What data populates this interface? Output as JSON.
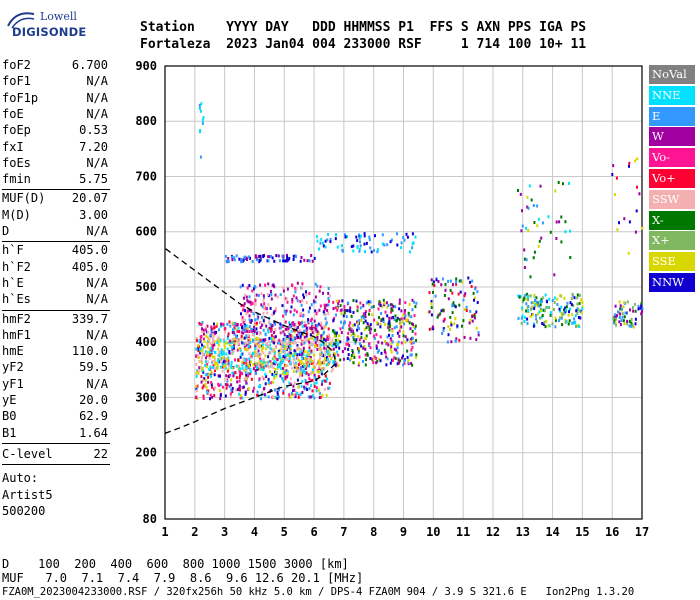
{
  "logo": {
    "line1": "Lowell",
    "line2": "DIGISONDE"
  },
  "header": {
    "line1": "Station    YYYY DAY   DDD HHMMSS P1  FFS S AXN PPS IGA PS",
    "line2": "Fortaleza  2023 Jan04 004 233000 RSF     1 714 100 10+ 11"
  },
  "params": {
    "group1": [
      {
        "label": "foF2",
        "value": "6.700"
      },
      {
        "label": "foF1",
        "value": "N/A"
      },
      {
        "label": "foF1p",
        "value": "N/A"
      },
      {
        "label": "foE",
        "value": "N/A"
      },
      {
        "label": "foEp",
        "value": "0.53"
      },
      {
        "label": "fxI",
        "value": "7.20"
      },
      {
        "label": "foEs",
        "value": "N/A"
      },
      {
        "label": "fmin",
        "value": "5.75"
      }
    ],
    "group2": [
      {
        "label": "MUF(D)",
        "value": "20.07"
      },
      {
        "label": "M(D)",
        "value": "3.00"
      },
      {
        "label": "D",
        "value": "N/A"
      }
    ],
    "group3": [
      {
        "label": "h`F",
        "value": "405.0"
      },
      {
        "label": "h`F2",
        "value": "405.0"
      },
      {
        "label": "h`E",
        "value": "N/A"
      },
      {
        "label": "h`Es",
        "value": "N/A"
      }
    ],
    "group4": [
      {
        "label": "hmF2",
        "value": "339.7"
      },
      {
        "label": "hmF1",
        "value": "N/A"
      },
      {
        "label": "hmE",
        "value": "110.0"
      },
      {
        "label": "yF2",
        "value": "59.5"
      },
      {
        "label": "yF1",
        "value": "N/A"
      },
      {
        "label": "yE",
        "value": "20.0"
      },
      {
        "label": "B0",
        "value": "62.9"
      },
      {
        "label": "B1",
        "value": "1.64"
      }
    ],
    "clevel": {
      "label": "C-level",
      "value": "22"
    },
    "auto": {
      "line1": "Auto:",
      "line2": "Artist5",
      "line3": "500200"
    }
  },
  "footer": {
    "line1": "D    100  200  400  600  800 1000 1500 3000 [km]",
    "line2": "MUF   7.0  7.1  7.4  7.9  8.6  9.6 12.6 20.1 [MHz]",
    "line3": "FZA0M_2023004233000.RSF / 320fx256h 50 kHz 5.0 km / DPS-4 FZA0M 904 / 3.9 S 321.6 E   Ion2Png 1.3.20"
  },
  "legend": [
    {
      "label": "NoVal",
      "color": "#808080"
    },
    {
      "label": "NNE",
      "color": "#00e0ff"
    },
    {
      "label": "E",
      "color": "#3399ff"
    },
    {
      "label": "W",
      "color": "#a000a0"
    },
    {
      "label": "Vo-",
      "color": "#ff1493"
    },
    {
      "label": "Vo+",
      "color": "#ff0033"
    },
    {
      "label": "SSW",
      "color": "#f4b0b0"
    },
    {
      "label": "X-",
      "color": "#007800"
    },
    {
      "label": "X+",
      "color": "#80b860"
    },
    {
      "label": "SSE",
      "color": "#d8d800"
    },
    {
      "label": "NNW",
      "color": "#1000d0"
    }
  ],
  "chart_data": {
    "type": "scatter",
    "xlim": [
      1,
      17
    ],
    "ylim": [
      80,
      900
    ],
    "xticks": [
      1,
      2,
      3,
      4,
      5,
      6,
      7,
      8,
      9,
      10,
      11,
      12,
      13,
      14,
      15,
      16,
      17
    ],
    "yticks": [
      80,
      200,
      300,
      400,
      500,
      600,
      700,
      800,
      900
    ],
    "grid": true,
    "legend_placement": "right",
    "profile_curve": {
      "x": [
        1.0,
        1.5,
        2.0,
        2.5,
        3.0,
        3.5,
        4.0,
        4.5,
        5.0,
        5.5,
        6.0,
        6.3,
        6.5,
        6.7,
        6.7,
        6.6,
        6.3,
        6.0,
        5.5,
        5.0,
        4.0,
        3.5,
        3.0,
        2.5,
        2.0,
        1.5,
        1.0
      ],
      "y": [
        235,
        245,
        256,
        268,
        280,
        290,
        300,
        310,
        320,
        325,
        330,
        340,
        350,
        360,
        372,
        385,
        400,
        410,
        420,
        430,
        455,
        470,
        490,
        510,
        530,
        550,
        570
      ]
    },
    "clusters": [
      {
        "x": [
          2.0,
          6.5
        ],
        "y": [
          300,
          440
        ],
        "colors": [
          "W",
          "Vo-",
          "SSW",
          "SSE",
          "NNE",
          "E",
          "Vo+",
          "NNW"
        ],
        "n": 900
      },
      {
        "x": [
          2.0,
          6.8
        ],
        "y": [
          345,
          410
        ],
        "colors": [
          "SSE",
          "SSW",
          "NNE"
        ],
        "n": 350
      },
      {
        "x": [
          6.6,
          9.4
        ],
        "y": [
          360,
          480
        ],
        "colors": [
          "SSE",
          "W",
          "NNW",
          "Vo-",
          "E",
          "X-"
        ],
        "n": 380
      },
      {
        "x": [
          3.5,
          6.5
        ],
        "y": [
          400,
          510
        ],
        "colors": [
          "W",
          "Vo-",
          "NNW",
          "E",
          "SSW"
        ],
        "n": 250
      },
      {
        "x": [
          9.8,
          11.5
        ],
        "y": [
          400,
          520
        ],
        "colors": [
          "NNW",
          "W",
          "SSE",
          "Vo+",
          "X-",
          "E"
        ],
        "n": 110
      },
      {
        "x": [
          12.8,
          15.0
        ],
        "y": [
          430,
          490
        ],
        "colors": [
          "E",
          "NNE",
          "NNW",
          "X-",
          "X+",
          "SSE"
        ],
        "n": 170
      },
      {
        "x": [
          16.0,
          17.0
        ],
        "y": [
          430,
          480
        ],
        "colors": [
          "E",
          "W",
          "X+",
          "SSE",
          "NNW",
          "X-"
        ],
        "n": 60
      },
      {
        "x": [
          3.0,
          6.0
        ],
        "y": [
          548,
          560
        ],
        "colors": [
          "NNW",
          "E",
          "W"
        ],
        "n": 80
      },
      {
        "x": [
          6.0,
          9.4
        ],
        "y": [
          565,
          600
        ],
        "colors": [
          "NNW",
          "NNE",
          "E"
        ],
        "n": 70
      },
      {
        "x": [
          12.8,
          14.6
        ],
        "y": [
          520,
          700
        ],
        "colors": [
          "W",
          "NNE",
          "X-",
          "SSE",
          "E"
        ],
        "n": 45
      },
      {
        "x": [
          15.9,
          17.0
        ],
        "y": [
          560,
          740
        ],
        "colors": [
          "X-",
          "SSE",
          "W",
          "Vo+",
          "NNW"
        ],
        "n": 18
      },
      {
        "x": [
          2.1,
          2.3
        ],
        "y": [
          735,
          840
        ],
        "colors": [
          "NNE",
          "E"
        ],
        "n": 10
      }
    ]
  }
}
